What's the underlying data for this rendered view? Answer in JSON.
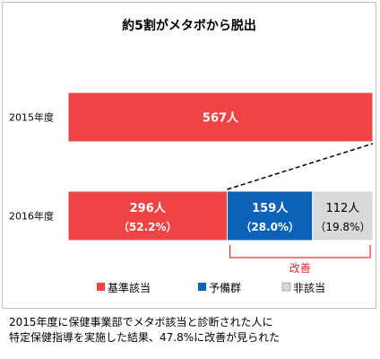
{
  "chart_data": {
    "type": "bar",
    "orientation": "horizontal",
    "stacked": true,
    "title": "約5割がメタボから脱出",
    "categories": [
      "2015年度",
      "2016年度"
    ],
    "series": [
      {
        "name": "基準該当",
        "color": "#ee4444",
        "values": [
          567,
          296
        ],
        "labels": [
          "567人",
          "296人"
        ],
        "sublabels": [
          "",
          "（52.2%）"
        ]
      },
      {
        "name": "予備群",
        "color": "#0b62b8",
        "values": [
          0,
          159
        ],
        "labels": [
          "",
          "159人"
        ],
        "sublabels": [
          "",
          "（28.0%）"
        ]
      },
      {
        "name": "非該当",
        "color": "#d9d9d9",
        "values": [
          0,
          112
        ],
        "labels": [
          "",
          "112人"
        ],
        "sublabels": [
          "",
          "（19.8%）"
        ]
      }
    ],
    "xlim": [
      0,
      567
    ],
    "annotation": "改善",
    "grid": false,
    "legend_position": "bottom"
  },
  "caption": {
    "line1": "2015年度に保健事業部でメタボ該当と診断された人に",
    "line2": "特定保健指導を実施した結果、47.8%に改善が見られた"
  }
}
